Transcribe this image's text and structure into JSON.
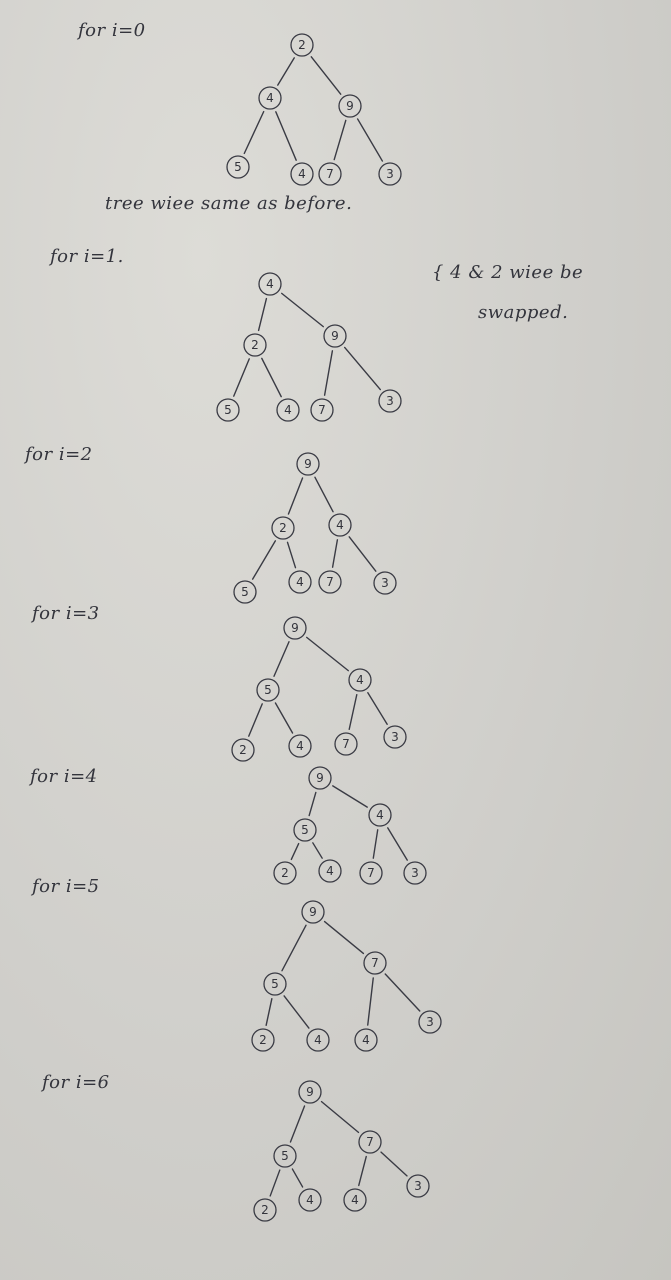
{
  "notes": {
    "line1_label": "for i=0",
    "line1_comment": "tree wiee same as before.",
    "line2_label": "for i=1.",
    "line2_comment_a": "{ 4 & 2 wiee be",
    "line2_comment_b": "swapped.",
    "line3_label": "for i=2",
    "line4_label": "for i=3",
    "line5_label": "for i=4",
    "line6_label": "for i=5",
    "line7_label": "for i=6"
  },
  "trees": [
    {
      "label": "i=0",
      "nodes": [
        "2",
        "4",
        "9",
        "5",
        "4",
        "7",
        "3"
      ],
      "edges": [
        [
          0,
          1
        ],
        [
          0,
          2
        ],
        [
          1,
          3
        ],
        [
          1,
          4
        ],
        [
          2,
          5
        ],
        [
          2,
          6
        ]
      ]
    },
    {
      "label": "i=1",
      "nodes": [
        "4",
        "2",
        "9",
        "5",
        "4",
        "7",
        "3"
      ],
      "edges": [
        [
          0,
          1
        ],
        [
          0,
          2
        ],
        [
          1,
          3
        ],
        [
          1,
          4
        ],
        [
          2,
          5
        ],
        [
          2,
          6
        ]
      ]
    },
    {
      "label": "i=2",
      "nodes": [
        "9",
        "2",
        "4",
        "5",
        "4",
        "7",
        "3"
      ],
      "edges": [
        [
          0,
          1
        ],
        [
          0,
          2
        ],
        [
          1,
          3
        ],
        [
          1,
          4
        ],
        [
          2,
          5
        ],
        [
          2,
          6
        ]
      ]
    },
    {
      "label": "i=3",
      "nodes": [
        "9",
        "5",
        "4",
        "2",
        "4",
        "7",
        "3"
      ],
      "edges": [
        [
          0,
          1
        ],
        [
          0,
          2
        ],
        [
          1,
          3
        ],
        [
          1,
          4
        ],
        [
          2,
          5
        ],
        [
          2,
          6
        ]
      ]
    },
    {
      "label": "i=4",
      "nodes": [
        "9",
        "5",
        "4",
        "2",
        "4",
        "7",
        "3"
      ],
      "edges": [
        [
          0,
          1
        ],
        [
          0,
          2
        ],
        [
          1,
          3
        ],
        [
          1,
          4
        ],
        [
          2,
          5
        ],
        [
          2,
          6
        ]
      ]
    },
    {
      "label": "i=5",
      "nodes": [
        "9",
        "5",
        "7",
        "2",
        "4",
        "4",
        "3"
      ],
      "edges": [
        [
          0,
          1
        ],
        [
          0,
          2
        ],
        [
          1,
          3
        ],
        [
          1,
          4
        ],
        [
          2,
          5
        ],
        [
          2,
          6
        ]
      ]
    },
    {
      "label": "i=6",
      "nodes": [
        "9",
        "5",
        "7",
        "2",
        "4",
        "4",
        "3"
      ],
      "edges": [
        [
          0,
          1
        ],
        [
          0,
          2
        ],
        [
          1,
          3
        ],
        [
          1,
          4
        ],
        [
          2,
          5
        ],
        [
          2,
          6
        ]
      ]
    }
  ]
}
